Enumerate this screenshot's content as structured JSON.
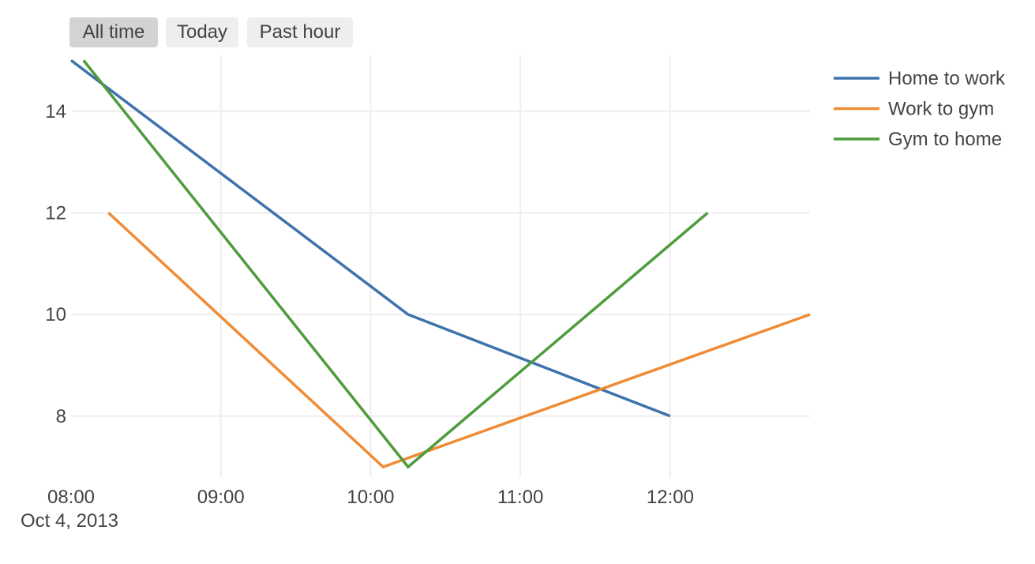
{
  "range_selector": {
    "buttons": [
      {
        "label": "All time",
        "active": true
      },
      {
        "label": "Today",
        "active": false
      },
      {
        "label": "Past hour",
        "active": false
      }
    ]
  },
  "chart_data": {
    "type": "line",
    "title": "",
    "xlabel": "",
    "ylabel": "",
    "x_type": "datetime",
    "xlim": [
      "2013-10-04 08:00",
      "2013-10-04 12:56"
    ],
    "ylim": [
      6.8,
      15.1
    ],
    "x_ticks": [
      "08:00",
      "09:00",
      "10:00",
      "11:00",
      "12:00"
    ],
    "x_date_label": "Oct 4, 2013",
    "y_ticks": [
      8,
      10,
      12,
      14
    ],
    "grid": true,
    "legend_position": "right",
    "series": [
      {
        "name": "Home to work",
        "color": "#3d72ac",
        "x": [
          "2013-10-04 08:00",
          "2013-10-04 10:15",
          "2013-10-04 12:00"
        ],
        "y": [
          15,
          10,
          8
        ]
      },
      {
        "name": "Work to gym",
        "color": "#ef8b35",
        "x": [
          "2013-10-04 08:15",
          "2013-10-04 10:05",
          "2013-10-04 12:56"
        ],
        "y": [
          12,
          7,
          10
        ]
      },
      {
        "name": "Gym to home",
        "color": "#4e9c3c",
        "x": [
          "2013-10-04 08:05",
          "2013-10-04 10:15",
          "2013-10-04 12:15"
        ],
        "y": [
          15,
          7,
          12
        ]
      }
    ]
  }
}
